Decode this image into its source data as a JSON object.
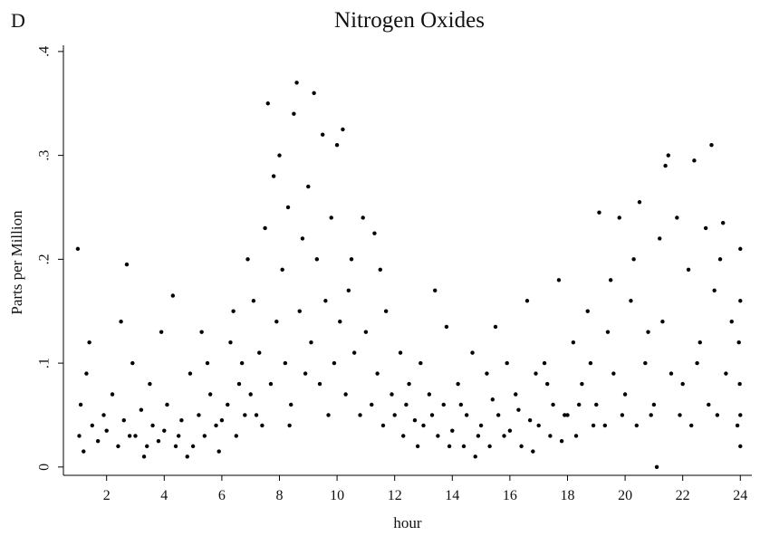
{
  "chart_data": {
    "type": "scatter",
    "panel_label": "D",
    "title": "Nitrogen Oxides",
    "x_label": "hour",
    "y_label": "Parts per Million",
    "color": "#000000",
    "xlim": [
      0.5,
      24.4
    ],
    "ylim": [
      -0.008,
      0.406
    ],
    "xticks": [
      2,
      4,
      6,
      8,
      10,
      12,
      14,
      16,
      18,
      20,
      22,
      24
    ],
    "yticks": [
      0,
      {
        "value": 0.1,
        "label": ".1"
      },
      {
        "value": 0.2,
        "label": ".2"
      },
      {
        "value": 0.3,
        "label": ".3"
      },
      {
        "value": 0.4,
        "label": ".4"
      }
    ],
    "x": [
      1.0,
      1.05,
      1.1,
      1.2,
      1.3,
      1.5,
      1.7,
      1.9,
      1.4,
      2.0,
      2.2,
      2.4,
      2.6,
      2.7,
      2.8,
      2.9,
      2.5,
      3.0,
      3.2,
      3.4,
      3.5,
      3.6,
      3.8,
      3.9,
      3.3,
      4.0,
      4.1,
      4.3,
      4.4,
      4.6,
      4.8,
      4.9,
      4.5,
      5.0,
      5.2,
      5.3,
      5.4,
      5.6,
      5.8,
      5.9,
      5.5,
      6.0,
      6.2,
      6.3,
      6.5,
      6.6,
      6.8,
      6.9,
      6.7,
      6.4,
      7.0,
      7.1,
      7.2,
      7.3,
      7.5,
      7.6,
      7.7,
      7.8,
      7.9,
      7.4,
      8.0,
      8.1,
      8.2,
      8.3,
      8.4,
      8.5,
      8.6,
      8.7,
      8.8,
      8.9,
      8.35,
      9.0,
      9.1,
      9.2,
      9.3,
      9.4,
      9.5,
      9.6,
      9.7,
      9.8,
      9.9,
      10.0,
      10.1,
      10.2,
      10.3,
      10.5,
      10.6,
      10.8,
      10.9,
      10.4,
      11.0,
      11.2,
      11.3,
      11.4,
      11.6,
      11.7,
      11.9,
      11.5,
      12.0,
      12.2,
      12.3,
      12.5,
      12.7,
      12.9,
      12.4,
      12.8,
      13.0,
      13.2,
      13.4,
      13.5,
      13.7,
      13.8,
      13.9,
      13.3,
      14.0,
      14.2,
      14.4,
      14.5,
      14.7,
      14.9,
      14.3,
      14.8,
      15.0,
      15.2,
      15.3,
      15.5,
      15.6,
      15.8,
      15.9,
      15.4,
      16.0,
      16.2,
      16.4,
      16.6,
      16.7,
      16.9,
      16.3,
      16.8,
      17.0,
      17.2,
      17.4,
      17.5,
      17.7,
      17.9,
      17.3,
      17.8,
      18.0,
      18.2,
      18.3,
      18.5,
      18.7,
      18.9,
      18.4,
      18.8,
      19.0,
      19.1,
      19.3,
      19.4,
      19.6,
      19.8,
      19.9,
      19.5,
      20.0,
      20.2,
      20.4,
      20.5,
      20.7,
      20.9,
      20.3,
      20.8,
      21.0,
      21.1,
      21.2,
      21.4,
      21.5,
      21.6,
      21.8,
      21.9,
      21.3,
      22.0,
      22.2,
      22.3,
      22.4,
      22.6,
      22.8,
      22.9,
      22.5,
      23.0,
      23.1,
      23.2,
      23.4,
      23.5,
      23.7,
      23.9,
      23.3,
      24.0,
      24.0,
      23.95,
      24.0,
      23.98,
      24.0
    ],
    "values": [
      0.21,
      0.03,
      0.06,
      0.015,
      0.09,
      0.04,
      0.025,
      0.05,
      0.12,
      0.035,
      0.07,
      0.02,
      0.045,
      0.195,
      0.03,
      0.1,
      0.14,
      0.03,
      0.055,
      0.02,
      0.08,
      0.04,
      0.025,
      0.13,
      0.01,
      0.035,
      0.06,
      0.165,
      0.02,
      0.045,
      0.01,
      0.09,
      0.03,
      0.02,
      0.05,
      0.13,
      0.03,
      0.07,
      0.04,
      0.015,
      0.1,
      0.045,
      0.06,
      0.12,
      0.03,
      0.08,
      0.05,
      0.2,
      0.1,
      0.15,
      0.07,
      0.16,
      0.05,
      0.11,
      0.23,
      0.35,
      0.08,
      0.28,
      0.14,
      0.04,
      0.3,
      0.19,
      0.1,
      0.25,
      0.06,
      0.34,
      0.37,
      0.15,
      0.22,
      0.09,
      0.04,
      0.27,
      0.12,
      0.36,
      0.2,
      0.08,
      0.32,
      0.16,
      0.05,
      0.24,
      0.1,
      0.31,
      0.14,
      0.325,
      0.07,
      0.2,
      0.11,
      0.05,
      0.24,
      0.17,
      0.13,
      0.06,
      0.225,
      0.09,
      0.04,
      0.15,
      0.07,
      0.19,
      0.05,
      0.11,
      0.03,
      0.08,
      0.045,
      0.1,
      0.06,
      0.02,
      0.04,
      0.07,
      0.17,
      0.03,
      0.06,
      0.135,
      0.02,
      0.05,
      0.035,
      0.08,
      0.02,
      0.05,
      0.11,
      0.03,
      0.06,
      0.01,
      0.04,
      0.09,
      0.02,
      0.135,
      0.05,
      0.03,
      0.1,
      0.065,
      0.035,
      0.07,
      0.02,
      0.16,
      0.045,
      0.09,
      0.055,
      0.015,
      0.04,
      0.1,
      0.03,
      0.06,
      0.18,
      0.05,
      0.08,
      0.025,
      0.05,
      0.12,
      0.03,
      0.08,
      0.15,
      0.04,
      0.06,
      0.1,
      0.06,
      0.245,
      0.04,
      0.13,
      0.09,
      0.24,
      0.05,
      0.18,
      0.07,
      0.16,
      0.04,
      0.255,
      0.1,
      0.05,
      0.2,
      0.13,
      0.06,
      0.0,
      0.22,
      0.29,
      0.3,
      0.09,
      0.24,
      0.05,
      0.14,
      0.08,
      0.19,
      0.04,
      0.295,
      0.12,
      0.23,
      0.06,
      0.1,
      0.31,
      0.17,
      0.05,
      0.235,
      0.09,
      0.14,
      0.04,
      0.2,
      0.05,
      0.21,
      0.12,
      0.02,
      0.08,
      0.16
    ]
  }
}
